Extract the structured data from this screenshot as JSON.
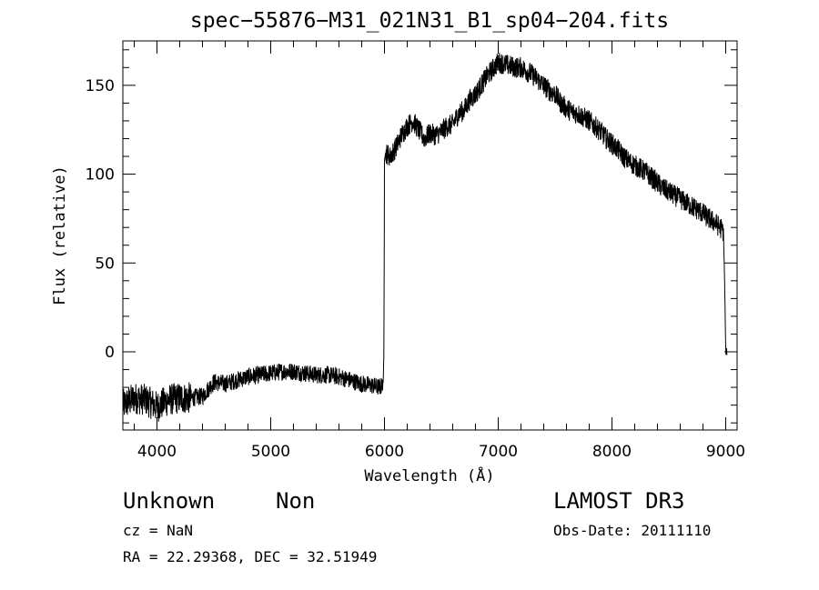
{
  "chart_data": {
    "type": "line",
    "title": "spec−55876−M31_021N31_B1_sp04−204.fits",
    "xlabel": "Wavelength (Å)",
    "ylabel": "Flux (relative)",
    "xlim": [
      3700,
      9100
    ],
    "ylim": [
      -44,
      175
    ],
    "x_ticks": [
      4000,
      5000,
      6000,
      7000,
      8000,
      9000
    ],
    "y_ticks": [
      0,
      50,
      100,
      150
    ],
    "x_tick_labels": [
      "4000",
      "5000",
      "6000",
      "7000",
      "8000",
      "9000"
    ],
    "y_tick_labels": [
      "0",
      "50",
      "100",
      "150"
    ],
    "grid": false,
    "series": [
      {
        "name": "flux",
        "x": [
          3700,
          3800,
          3900,
          4000,
          4100,
          4200,
          4300,
          4400,
          4500,
          4600,
          4700,
          4800,
          4900,
          5000,
          5100,
          5200,
          5300,
          5400,
          5500,
          5600,
          5700,
          5800,
          5900,
          5950,
          5980,
          5990,
          5995,
          6000,
          6010,
          6050,
          6100,
          6150,
          6200,
          6250,
          6300,
          6350,
          6400,
          6450,
          6500,
          6550,
          6600,
          6650,
          6700,
          6750,
          6800,
          6850,
          6900,
          6950,
          7000,
          7050,
          7100,
          7150,
          7200,
          7250,
          7300,
          7350,
          7400,
          7450,
          7500,
          7550,
          7600,
          7650,
          7700,
          7750,
          7800,
          7850,
          7900,
          7950,
          8000,
          8050,
          8100,
          8150,
          8200,
          8250,
          8300,
          8350,
          8400,
          8450,
          8500,
          8550,
          8600,
          8650,
          8700,
          8750,
          8800,
          8850,
          8900,
          8950,
          8980,
          8990,
          9000,
          9010
        ],
        "y": [
          -30,
          -26,
          -27,
          -31,
          -27,
          -26,
          -26,
          -25,
          -17,
          -18,
          -16,
          -14,
          -13,
          -12,
          -11,
          -11,
          -12,
          -13,
          -13,
          -14,
          -16,
          -18,
          -19,
          -20,
          -19,
          -14,
          0,
          108,
          112,
          110,
          115,
          122,
          127,
          130,
          125,
          120,
          123,
          122,
          124,
          127,
          128,
          134,
          136,
          142,
          145,
          150,
          155,
          159,
          163,
          162,
          161,
          160,
          160,
          158,
          156,
          153,
          150,
          147,
          145,
          140,
          137,
          135,
          134,
          132,
          130,
          127,
          124,
          120,
          117,
          114,
          110,
          107,
          105,
          103,
          101,
          98,
          95,
          92,
          90,
          88,
          86,
          84,
          82,
          80,
          78,
          75,
          73,
          70,
          68,
          40,
          0,
          0
        ]
      }
    ]
  },
  "info": {
    "object_class": "Unknown",
    "object_subclass": "Non",
    "cz": "cz = NaN",
    "coords": "RA =  22.29368, DEC =  32.51949",
    "survey": "LAMOST DR3",
    "obs_date": "Obs-Date: 20111110"
  }
}
